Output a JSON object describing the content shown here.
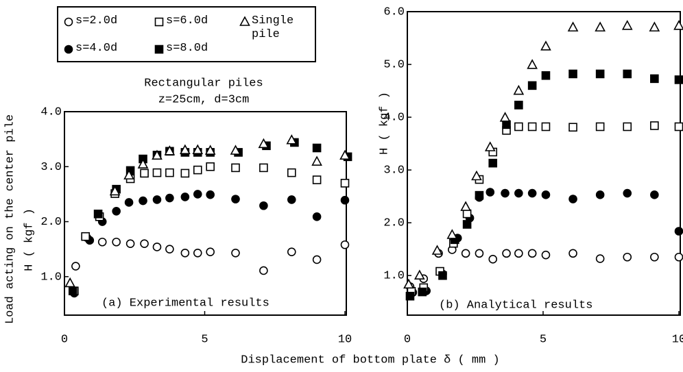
{
  "chart_data": [
    {
      "type": "scatter",
      "xlabel": "Displacement of bottom plate δ ( mm )",
      "ylabel": [
        "Load acting on the center pile",
        "H ( kgf )"
      ],
      "annotations": [
        "Rectangular piles",
        "z=25cm, d=3cm",
        "(a) Experimental results"
      ],
      "xlim": [
        0,
        10
      ],
      "xticks": [
        0,
        5,
        10
      ],
      "ylim": [
        0.3,
        4.0
      ],
      "yticks": [
        {
          "value": 1,
          "label": "1.0"
        },
        {
          "value": 2,
          "label": "2.0"
        },
        {
          "value": 3,
          "label": "3.0"
        },
        {
          "value": 4,
          "label": "4.0"
        }
      ],
      "series": [
        {
          "name": "s=2.0d",
          "color": "#000",
          "marker": "circle-open",
          "x": [
            0.4,
            0.8,
            1.35,
            1.85,
            2.35,
            2.85,
            3.3,
            3.75,
            4.3,
            4.75,
            5.2,
            6.1,
            7.1,
            8.1,
            9.0,
            10.0
          ],
          "values": [
            1.19,
            1.71,
            1.63,
            1.63,
            1.6,
            1.6,
            1.54,
            1.5,
            1.43,
            1.43,
            1.45,
            1.43,
            1.11,
            1.45,
            1.31,
            1.58
          ]
        },
        {
          "name": "s=4.0d",
          "color": "#000",
          "marker": "circle-filled",
          "x": [
            0.35,
            0.9,
            1.35,
            1.85,
            2.3,
            2.8,
            3.3,
            3.75,
            4.3,
            4.75,
            5.2,
            6.1,
            7.1,
            8.1,
            9.0,
            10.0
          ],
          "values": [
            0.7,
            1.66,
            2.0,
            2.19,
            2.35,
            2.38,
            2.4,
            2.43,
            2.45,
            2.5,
            2.49,
            2.41,
            2.29,
            2.4,
            2.09,
            2.39
          ]
        },
        {
          "name": "s=6.0d",
          "color": "#000",
          "marker": "square-open",
          "x": [
            0.35,
            0.75,
            1.25,
            1.8,
            2.35,
            2.85,
            3.3,
            3.75,
            4.3,
            4.75,
            5.2,
            6.1,
            7.1,
            8.1,
            9.0,
            10.0
          ],
          "values": [
            0.74,
            1.73,
            2.09,
            2.51,
            2.78,
            2.88,
            2.89,
            2.89,
            2.88,
            2.94,
            3.0,
            2.98,
            2.98,
            2.89,
            2.76,
            2.7
          ]
        },
        {
          "name": "s=8.0d",
          "color": "#000",
          "marker": "square-filled",
          "x": [
            0.3,
            1.2,
            1.85,
            2.35,
            2.8,
            3.3,
            3.75,
            4.3,
            4.75,
            5.2,
            6.2,
            7.2,
            8.2,
            9.0,
            10.1
          ],
          "values": [
            0.74,
            2.14,
            2.59,
            2.93,
            3.14,
            3.21,
            3.28,
            3.26,
            3.26,
            3.26,
            3.26,
            3.38,
            3.44,
            3.34,
            3.18
          ]
        },
        {
          "name": "Single pile",
          "color": "#000",
          "marker": "triangle-open",
          "x": [
            0.2,
            1.8,
            2.3,
            2.8,
            3.3,
            3.75,
            4.3,
            4.75,
            5.2,
            6.1,
            7.1,
            8.1,
            9.0,
            10.0
          ],
          "values": [
            0.88,
            2.55,
            2.84,
            3.04,
            3.2,
            3.28,
            3.3,
            3.3,
            3.29,
            3.29,
            3.41,
            3.48,
            3.09,
            3.2
          ]
        }
      ]
    },
    {
      "type": "scatter",
      "ylabel": "H ( kgf )",
      "annotations": [
        "(b) Analytical results"
      ],
      "xlim": [
        0,
        10
      ],
      "xticks": [
        0,
        5,
        10
      ],
      "ylim": [
        0.25,
        6.0
      ],
      "yticks": [
        {
          "value": 1,
          "label": "1.0"
        },
        {
          "value": 2,
          "label": "2.0"
        },
        {
          "value": 3,
          "label": "3.0"
        },
        {
          "value": 4,
          "label": "4.0"
        },
        {
          "value": 5,
          "label": "5.0"
        },
        {
          "value": 6,
          "label": "6.0"
        }
      ],
      "series": [
        {
          "color": "#000",
          "marker": "circle-open",
          "x": [
            0.1,
            0.6,
            1.15,
            1.65,
            2.15,
            2.65,
            3.15,
            3.65,
            4.1,
            4.6,
            5.1,
            6.1,
            7.1,
            8.1,
            9.1,
            10.0
          ],
          "values": [
            0.79,
            0.94,
            1.42,
            1.49,
            1.42,
            1.42,
            1.31,
            1.42,
            1.42,
            1.42,
            1.39,
            1.42,
            1.32,
            1.35,
            1.35,
            1.35
          ]
        },
        {
          "color": "#000",
          "marker": "circle-filled",
          "x": [
            0.2,
            0.7,
            1.3,
            1.85,
            2.3,
            2.65,
            3.05,
            3.6,
            4.1,
            4.6,
            5.1,
            6.1,
            7.1,
            8.1,
            9.1,
            10.0
          ],
          "values": [
            0.68,
            0.71,
            1.03,
            1.71,
            2.09,
            2.48,
            2.58,
            2.56,
            2.56,
            2.56,
            2.53,
            2.45,
            2.53,
            2.56,
            2.53,
            1.84
          ]
        },
        {
          "color": "#000",
          "marker": "square-open",
          "x": [
            0.15,
            0.6,
            1.2,
            1.7,
            2.2,
            2.65,
            3.15,
            3.65,
            4.1,
            4.6,
            5.1,
            6.1,
            7.1,
            8.1,
            9.1,
            10.0
          ],
          "values": [
            0.7,
            0.77,
            1.08,
            1.61,
            2.17,
            2.82,
            3.34,
            3.75,
            3.82,
            3.82,
            3.82,
            3.81,
            3.82,
            3.82,
            3.84,
            3.82
          ]
        },
        {
          "color": "#000",
          "marker": "square-filled",
          "x": [
            0.1,
            0.55,
            1.3,
            1.75,
            2.2,
            2.65,
            3.15,
            3.65,
            4.1,
            4.6,
            5.1,
            6.1,
            7.1,
            8.1,
            9.1,
            10.0
          ],
          "values": [
            0.61,
            0.69,
            1.0,
            1.68,
            1.97,
            2.52,
            3.13,
            3.86,
            4.23,
            4.6,
            4.79,
            4.82,
            4.82,
            4.82,
            4.73,
            4.71
          ]
        },
        {
          "color": "#000",
          "marker": "triangle-open",
          "x": [
            0.05,
            0.45,
            1.1,
            1.65,
            2.15,
            2.55,
            3.05,
            3.6,
            4.1,
            4.6,
            5.1,
            6.1,
            7.1,
            8.1,
            9.1,
            10.0
          ],
          "values": [
            0.83,
            1.0,
            1.47,
            1.77,
            2.3,
            2.88,
            3.43,
            3.99,
            4.5,
            4.99,
            5.34,
            5.7,
            5.7,
            5.73,
            5.7,
            5.73
          ]
        }
      ]
    }
  ]
}
